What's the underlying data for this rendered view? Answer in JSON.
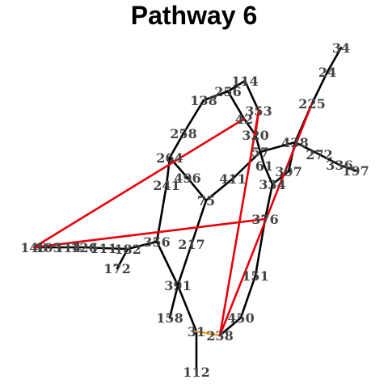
{
  "title": "Pathway 6",
  "colors": {
    "normal": "#000000",
    "highlight": "#e8000b",
    "secondary": "#f0a030",
    "label": "#444444"
  },
  "nodes": [
    "34",
    "24",
    "114",
    "256",
    "138",
    "225",
    "353",
    "42",
    "320",
    "258",
    "438",
    "272",
    "336",
    "197",
    "264",
    "57",
    "61",
    "397",
    "496",
    "411",
    "334",
    "241",
    "75",
    "376",
    "140",
    "103",
    "114",
    "126",
    "111",
    "182",
    "172",
    "356",
    "217",
    "151",
    "391",
    "450",
    "158",
    "31",
    "238",
    "112"
  ],
  "edges": [
    {
      "from": "34",
      "to": "24",
      "type": "normal"
    },
    {
      "from": "24",
      "to": "225",
      "type": "normal"
    },
    {
      "from": "225",
      "to": "438",
      "type": "normal"
    },
    {
      "from": "438",
      "to": "272",
      "type": "normal"
    },
    {
      "from": "272",
      "to": "336",
      "type": "normal"
    },
    {
      "from": "336",
      "to": "197",
      "type": "normal"
    },
    {
      "from": "438",
      "to": "57",
      "type": "normal"
    },
    {
      "from": "438",
      "to": "397",
      "type": "normal"
    },
    {
      "from": "397",
      "to": "334",
      "type": "normal"
    },
    {
      "from": "114",
      "to": "256",
      "type": "normal"
    },
    {
      "from": "114",
      "to": "353",
      "type": "normal"
    },
    {
      "from": "256",
      "to": "138",
      "type": "normal"
    },
    {
      "from": "256",
      "to": "42",
      "type": "normal"
    },
    {
      "from": "138",
      "to": "258",
      "type": "normal"
    },
    {
      "from": "258",
      "to": "264",
      "type": "normal"
    },
    {
      "from": "264",
      "to": "496",
      "type": "normal"
    },
    {
      "from": "264",
      "to": "241",
      "type": "normal"
    },
    {
      "from": "496",
      "to": "75",
      "type": "normal"
    },
    {
      "from": "241",
      "to": "356",
      "type": "normal"
    },
    {
      "from": "75",
      "to": "411",
      "type": "normal"
    },
    {
      "from": "411",
      "to": "57",
      "type": "normal"
    },
    {
      "from": "42",
      "to": "320",
      "type": "normal"
    },
    {
      "from": "320",
      "to": "57",
      "type": "normal"
    },
    {
      "from": "57",
      "to": "61",
      "type": "normal"
    },
    {
      "from": "61",
      "to": "334",
      "type": "normal"
    },
    {
      "from": "334",
      "to": "376",
      "type": "normal"
    },
    {
      "from": "376",
      "to": "151",
      "type": "normal"
    },
    {
      "from": "151",
      "to": "450",
      "type": "normal"
    },
    {
      "from": "450",
      "to": "238",
      "type": "normal"
    },
    {
      "from": "75",
      "to": "217",
      "type": "normal"
    },
    {
      "from": "217",
      "to": "391",
      "type": "normal"
    },
    {
      "from": "391",
      "to": "158",
      "type": "normal"
    },
    {
      "from": "356",
      "to": "391",
      "type": "normal"
    },
    {
      "from": "391",
      "to": "31",
      "type": "normal"
    },
    {
      "from": "31",
      "to": "112",
      "type": "normal"
    },
    {
      "from": "356",
      "to": "182",
      "type": "normal"
    },
    {
      "from": "182",
      "to": "172",
      "type": "normal"
    },
    {
      "from": "182",
      "to": "111",
      "type": "normal"
    },
    {
      "from": "111",
      "to": "126",
      "type": "normal"
    },
    {
      "from": "126",
      "to": "114b",
      "type": "normal"
    },
    {
      "from": "114b",
      "to": "103",
      "type": "normal"
    },
    {
      "from": "103",
      "to": "140",
      "type": "normal"
    },
    {
      "from": "31",
      "to": "238",
      "type": "secondary"
    },
    {
      "from": "140",
      "to": "42",
      "type": "highlight"
    },
    {
      "from": "140",
      "to": "376",
      "type": "highlight"
    },
    {
      "from": "238",
      "to": "353",
      "type": "highlight"
    },
    {
      "from": "238",
      "to": "225",
      "type": "highlight"
    },
    {
      "from": "320",
      "to": "353",
      "type": "highlight"
    }
  ]
}
